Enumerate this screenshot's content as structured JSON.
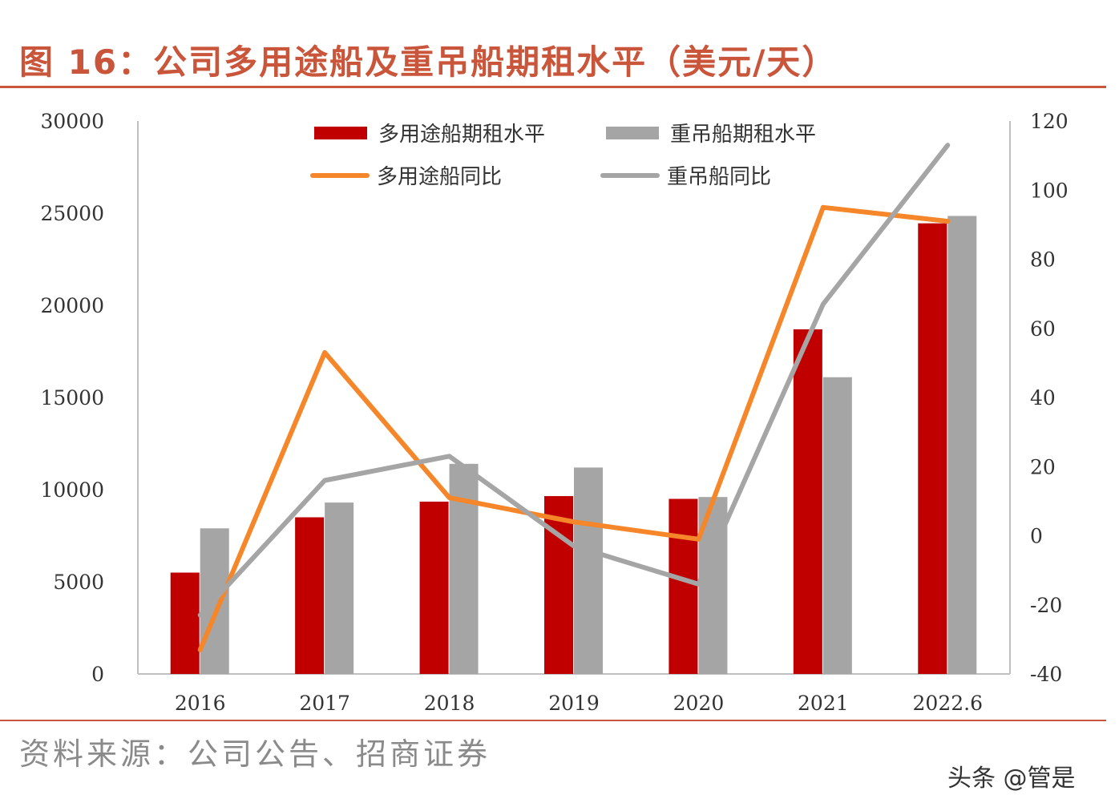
{
  "title": "图 16：公司多用途船及重吊船期租水平（美元/天）",
  "source": "资料来源：公司公告、招商证券",
  "watermark": "头条 @管是",
  "chart_data": {
    "type": "bar+line",
    "categories": [
      "2016",
      "2017",
      "2018",
      "2019",
      "2020",
      "2021",
      "2022.6"
    ],
    "left_axis": {
      "ylim": [
        0,
        30000
      ],
      "ticks": [
        0,
        5000,
        10000,
        15000,
        20000,
        25000,
        30000
      ]
    },
    "right_axis": {
      "ylim": [
        -40,
        120
      ],
      "ticks": [
        -40,
        -20,
        0,
        20,
        40,
        60,
        80,
        100,
        120
      ]
    },
    "grid": false,
    "legend_position": "top",
    "series": [
      {
        "name": "多用途船期租水平",
        "type": "bar",
        "axis": "left",
        "color": "#c00000",
        "values": [
          5500,
          8500,
          9350,
          9650,
          9500,
          18700,
          24450
        ]
      },
      {
        "name": "重吊船期租水平",
        "type": "bar",
        "axis": "left",
        "color": "#a5a5a5",
        "values": [
          7900,
          9300,
          11400,
          11200,
          9600,
          16100,
          24850
        ]
      },
      {
        "name": "多用途船同比",
        "type": "line",
        "axis": "right",
        "color": "#f5872a",
        "values": [
          -33,
          53,
          11,
          4,
          -1,
          95,
          91
        ]
      },
      {
        "name": "重吊船同比",
        "type": "line",
        "axis": "right",
        "color": "#a5a5a5",
        "values": [
          -23,
          16,
          23,
          -3,
          -14,
          67,
          113
        ]
      }
    ]
  }
}
